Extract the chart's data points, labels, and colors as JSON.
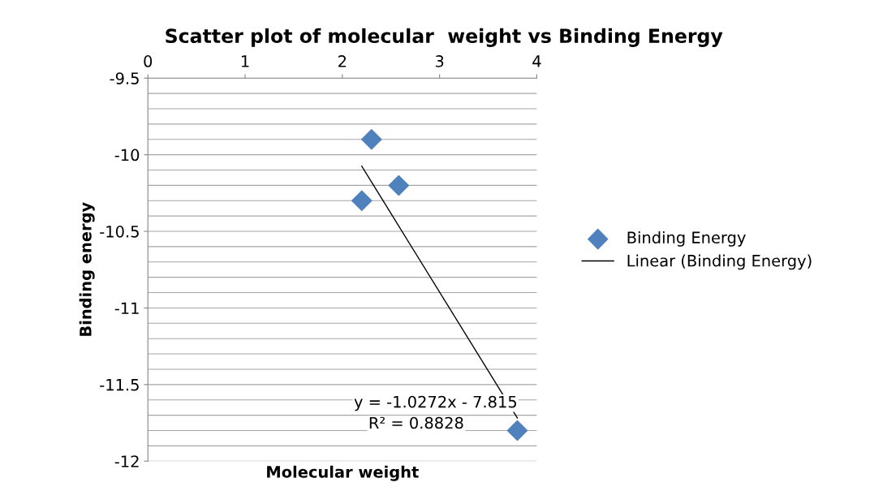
{
  "chart_data": {
    "type": "scatter",
    "title": "Scatter plot of molecular  weight vs Binding Energy",
    "xlabel": "Molecular weight",
    "ylabel": "Binding energy",
    "series": [
      {
        "name": "Binding Energy",
        "color": "#4f81bd",
        "x": [
          2.3,
          2.58,
          2.2,
          3.8
        ],
        "values": [
          -9.9,
          -10.2,
          -10.3,
          -11.8
        ],
        "marker": "diamond"
      },
      {
        "name": "Linear (Binding Energy)",
        "type": "line",
        "color": "#000000",
        "x": [
          2.2,
          3.8
        ],
        "values": [
          -10.075,
          -11.718
        ],
        "marker": "none"
      }
    ],
    "annotations": [
      "y = -1.0272x - 7.815",
      "R² = 0.8828"
    ],
    "xlim": [
      0,
      4
    ],
    "xticks": [
      0,
      1,
      2,
      3,
      4
    ],
    "ylim": [
      -12,
      -9.5
    ],
    "yticks": [
      -12,
      -11.5,
      -11,
      -10.5,
      -10,
      -9.5
    ],
    "grid": "y",
    "legend": "right"
  }
}
